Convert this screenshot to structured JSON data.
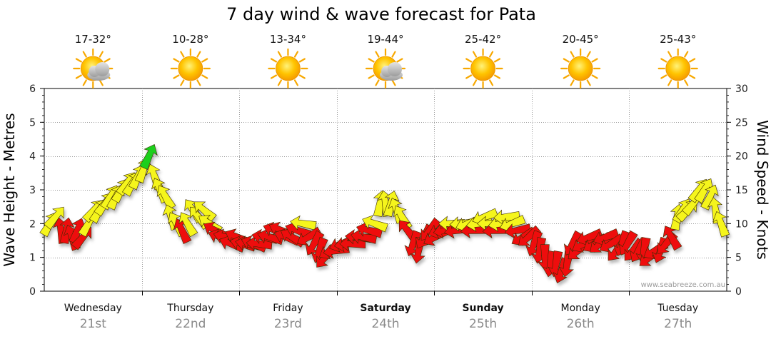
{
  "chart_data": {
    "type": "line",
    "title": "7 day wind & wave forecast for Pata",
    "ylabel_left": "Wave Height - Metres",
    "ylabel_right": "Wind Speed - Knots",
    "ylim_left": [
      0,
      6
    ],
    "ylim_right": [
      0,
      30
    ],
    "yticks_left": [
      "0",
      "1",
      "2",
      "3",
      "4",
      "5",
      "6"
    ],
    "yticks_right": [
      "0",
      "5",
      "10",
      "15",
      "20",
      "25",
      "30"
    ],
    "grid": true,
    "credit": "www.seabreeze.com.au",
    "days": [
      {
        "name": "Wednesday",
        "date": "21st",
        "bold": false,
        "temp": "17-32°",
        "weather": "partly-cloudy-icon"
      },
      {
        "name": "Thursday",
        "date": "22nd",
        "bold": false,
        "temp": "10-28°",
        "weather": "sunny-icon"
      },
      {
        "name": "Friday",
        "date": "23rd",
        "bold": false,
        "temp": "13-34°",
        "weather": "sunny-icon"
      },
      {
        "name": "Saturday",
        "date": "24th",
        "bold": true,
        "temp": "19-44°",
        "weather": "partly-cloudy-icon"
      },
      {
        "name": "Sunday",
        "date": "25th",
        "bold": true,
        "temp": "25-42°",
        "weather": "sunny-icon"
      },
      {
        "name": "Monday",
        "date": "26th",
        "bold": false,
        "temp": "20-45°",
        "weather": "sunny-icon"
      },
      {
        "name": "Tuesday",
        "date": "27th",
        "bold": false,
        "temp": "25-43°",
        "weather": "sunny-icon"
      }
    ],
    "wind_color_scale": {
      "red": "< 10 kn",
      "yellow": "10-20 kn",
      "green": ">= 20 kn"
    },
    "colors": {
      "red": "#ee1111",
      "yellow": "#f5f51a",
      "green": "#1fcf1f",
      "grid": "#9a9a9a",
      "sun": "#f7a800",
      "cloud": "#b8b8b8"
    },
    "wind_knots": [
      10,
      11,
      9,
      9,
      8,
      9,
      8,
      10,
      12,
      12,
      13,
      14,
      14,
      15,
      16,
      16,
      17,
      18,
      20,
      17,
      15,
      14,
      11,
      10,
      9,
      10,
      12,
      11,
      12,
      10,
      9,
      8,
      8,
      7,
      8,
      7,
      7,
      7,
      7,
      8,
      8,
      9,
      9,
      8,
      8,
      9,
      10,
      8,
      7,
      6,
      5,
      6,
      6,
      7,
      7,
      7,
      8,
      8,
      9,
      10,
      13,
      13,
      13,
      12,
      11,
      9,
      7,
      6,
      8,
      9,
      8,
      9,
      9,
      10,
      9,
      10,
      10,
      9,
      10,
      11,
      10,
      9,
      10,
      11,
      10,
      9,
      8,
      8,
      7,
      6,
      5,
      4,
      4,
      3,
      4,
      7,
      6,
      7,
      8,
      7,
      7,
      8,
      7,
      6,
      7,
      7,
      6,
      6,
      6,
      5,
      6,
      6,
      7,
      8,
      11,
      12,
      12,
      13,
      15,
      15,
      14,
      12,
      10
    ],
    "wind_dir_deg": [
      30,
      40,
      350,
      10,
      340,
      20,
      40,
      30,
      40,
      30,
      35,
      30,
      25,
      30,
      35,
      30,
      25,
      20,
      25,
      -20,
      -25,
      -30,
      -20,
      -30,
      -25,
      -30,
      -35,
      -40,
      -50,
      -55,
      -60,
      -70,
      -75,
      -70,
      -65,
      -75,
      -80,
      -70,
      -85,
      -80,
      -75,
      -70,
      -65,
      -70,
      -60,
      -70,
      -80,
      -120,
      -150,
      -160,
      -140,
      -120,
      -100,
      -110,
      -100,
      -90,
      -85,
      -80,
      -75,
      -70,
      10,
      -10,
      15,
      -20,
      -30,
      -40,
      -160,
      -170,
      -150,
      -140,
      -120,
      -110,
      -100,
      -90,
      -100,
      -95,
      -110,
      -95,
      -100,
      -110,
      -90,
      -95,
      -100,
      -95,
      -110,
      -100,
      -120,
      -130,
      -160,
      -170,
      -180,
      -170,
      -170,
      -160,
      -170,
      -150,
      -130,
      -120,
      -110,
      -120,
      -130,
      -110,
      -120,
      -140,
      -160,
      -150,
      -140,
      -150,
      -170,
      -130,
      -120,
      -160,
      -140,
      -30,
      10,
      30,
      45,
      40,
      35,
      30,
      25,
      -10,
      -20
    ]
  }
}
